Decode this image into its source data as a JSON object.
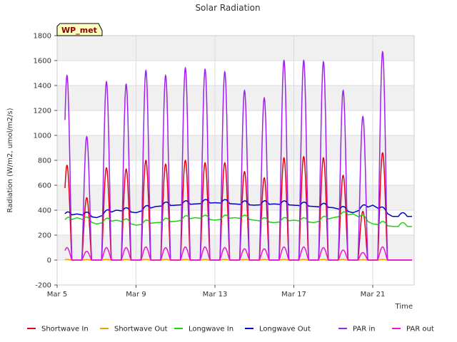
{
  "chart_data": {
    "type": "line",
    "title": "Solar Radiation",
    "xlabel": "Time",
    "ylabel": "Radiation (W/m2, umol/m2/s)",
    "annotation": "WP_met",
    "x_unit": "days from Mar 5",
    "xlim": [
      0,
      18.1
    ],
    "ylim": [
      -200,
      1800
    ],
    "x_ticks": [
      {
        "value": 0,
        "label": "Mar 5"
      },
      {
        "value": 4,
        "label": "Mar 9"
      },
      {
        "value": 8,
        "label": "Mar 13"
      },
      {
        "value": 12,
        "label": "Mar 17"
      },
      {
        "value": 16,
        "label": "Mar 21"
      }
    ],
    "y_ticks": [
      -200,
      0,
      200,
      400,
      600,
      800,
      1000,
      1200,
      1400,
      1600,
      1800
    ],
    "grid": true,
    "legend_position": "bottom",
    "days": [
      0,
      1,
      2,
      3,
      4,
      5,
      6,
      7,
      8,
      9,
      10,
      11,
      12,
      13,
      14,
      15,
      16,
      17
    ],
    "series": [
      {
        "name": "Shortwave In",
        "color": "#e8000b",
        "kind": "diurnal",
        "base": 0,
        "peaks": [
          760,
          500,
          740,
          730,
          800,
          770,
          800,
          780,
          780,
          710,
          660,
          820,
          830,
          820,
          680,
          390,
          860,
          0
        ]
      },
      {
        "name": "Shortwave Out",
        "color": "#f0a000",
        "kind": "diurnal",
        "base": 0,
        "peaks": [
          5,
          4,
          5,
          5,
          5,
          5,
          5,
          5,
          5,
          5,
          5,
          5,
          5,
          5,
          5,
          3,
          5,
          0
        ]
      },
      {
        "name": "Longwave In",
        "color": "#1ed40f",
        "kind": "smooth",
        "values": [
          280,
          340,
          290,
          320,
          280,
          300,
          310,
          340,
          320,
          340,
          320,
          300,
          320,
          300,
          340,
          370,
          290,
          270
        ]
      },
      {
        "name": "Longwave Out",
        "color": "#0000cc",
        "kind": "smooth",
        "values": [
          340,
          370,
          340,
          400,
          380,
          430,
          440,
          450,
          460,
          450,
          440,
          450,
          440,
          430,
          420,
          380,
          440,
          350
        ]
      },
      {
        "name": "PAR in",
        "color": "#a020f0",
        "kind": "diurnal",
        "base": 0,
        "peaks": [
          1480,
          990,
          1430,
          1410,
          1520,
          1480,
          1540,
          1530,
          1510,
          1360,
          1300,
          1600,
          1600,
          1590,
          1360,
          1150,
          1670,
          0
        ]
      },
      {
        "name": "PAR out",
        "color": "#f010d8",
        "kind": "diurnal",
        "base": 0,
        "peaks": [
          100,
          70,
          100,
          100,
          105,
          100,
          105,
          105,
          100,
          90,
          90,
          105,
          105,
          100,
          80,
          60,
          105,
          0
        ]
      }
    ]
  }
}
